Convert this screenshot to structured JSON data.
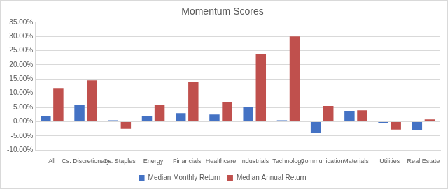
{
  "chart_data": {
    "type": "bar",
    "title": "Momentum Scores",
    "categories": [
      "All",
      "Cs. Discretionary",
      "Cs. Staples",
      "Energy",
      "Financials",
      "Healthcare",
      "Industrials",
      "Technology",
      "Communication",
      "Materials",
      "Utilities",
      "Real Estate"
    ],
    "series": [
      {
        "name": "Median Monthly Return",
        "color": "#4472c4",
        "values": [
          2.0,
          5.8,
          0.5,
          2.0,
          3.0,
          2.5,
          5.2,
          0.5,
          -3.8,
          3.8,
          -0.5,
          -3.0
        ]
      },
      {
        "name": "Median Annual Return",
        "color": "#c0504d",
        "values": [
          11.8,
          14.5,
          -2.5,
          5.8,
          14.0,
          7.0,
          23.8,
          30.0,
          5.5,
          4.0,
          -2.8,
          0.8
        ]
      }
    ],
    "ylim": [
      -10,
      35
    ],
    "yticks": [
      {
        "value": -10,
        "label": "-10.00%"
      },
      {
        "value": -5,
        "label": "-5.00%"
      },
      {
        "value": 0,
        "label": "0.00%"
      },
      {
        "value": 5,
        "label": "5.00%"
      },
      {
        "value": 10,
        "label": "10.00%"
      },
      {
        "value": 15,
        "label": "15.00%"
      },
      {
        "value": 20,
        "label": "20.00%"
      },
      {
        "value": 25,
        "label": "25.00%"
      },
      {
        "value": 30,
        "label": "30.00%"
      },
      {
        "value": 35,
        "label": "35.00%"
      }
    ],
    "grid": true,
    "legend": "bottom"
  }
}
